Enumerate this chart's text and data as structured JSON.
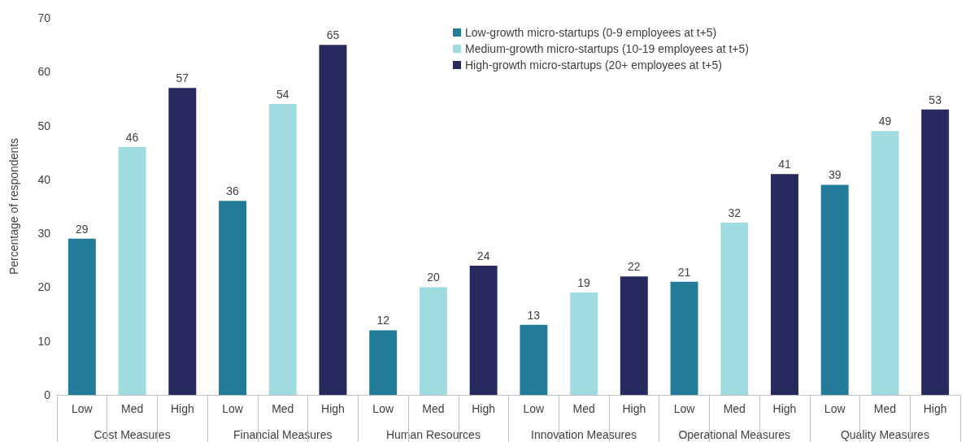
{
  "chart_data": {
    "type": "bar",
    "ylabel": "Percentage of respondents",
    "categories": [
      "Low",
      "Med",
      "High",
      "Low",
      "Med",
      "High",
      "Low",
      "Med",
      "High",
      "Low",
      "Med",
      "High",
      "Low",
      "Med",
      "High",
      "Low",
      "Med",
      "High"
    ],
    "series": [
      {
        "name": "Low-growth micro-startups (0-9 employees at t+5)",
        "color": "#237b9a",
        "values": [
          29,
          null,
          null,
          36,
          null,
          null,
          12,
          null,
          null,
          13,
          null,
          null,
          21,
          null,
          null,
          39,
          null,
          null
        ]
      },
      {
        "name": "Medium-growth micro-startups (10-19 employees at t+5)",
        "color": "#a0dbe0",
        "values": [
          null,
          46,
          null,
          null,
          54,
          null,
          null,
          20,
          null,
          null,
          19,
          null,
          null,
          32,
          null,
          null,
          49,
          null
        ]
      },
      {
        "name": "High-growth micro-startups (20+ employees at t+5)",
        "color": "#272a5e",
        "values": [
          null,
          null,
          57,
          null,
          null,
          65,
          null,
          null,
          24,
          null,
          null,
          22,
          null,
          null,
          41,
          null,
          null,
          53
        ]
      }
    ],
    "annotations": [
      "Cost Measures",
      "Financial Measures",
      "Human Resources",
      "Innovation Measures",
      "Operational Measures",
      "Quality Measures"
    ],
    "ylim": [
      0,
      70
    ],
    "yticks": [
      0,
      10,
      20,
      30,
      40,
      50,
      60,
      70
    ],
    "data_labels": true,
    "grid": false,
    "legend": "top right"
  }
}
